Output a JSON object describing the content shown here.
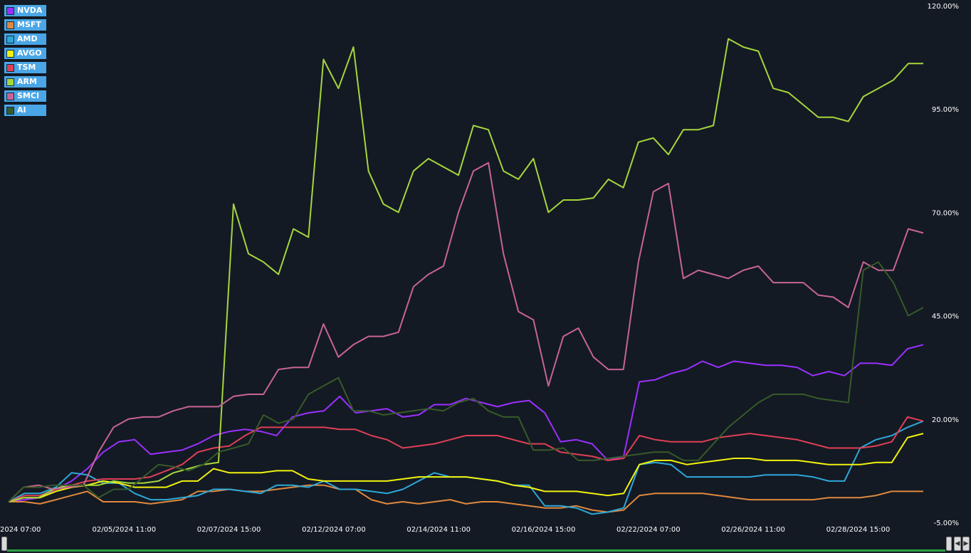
{
  "chart_data": {
    "type": "line",
    "y_unit": "%",
    "ylim": [
      -5,
      120
    ],
    "yticks": [
      "120.00%",
      "95.00%",
      "70.00%",
      "45.00%",
      "20.00%",
      "-5.00%"
    ],
    "xtick_labels": [
      "/2024 07:00",
      "02/05/2024 11:00",
      "02/07/2024 15:00",
      "02/12/2024 07:00",
      "02/14/2024 11:00",
      "02/16/2024 15:00",
      "02/22/2024 07:00",
      "02/26/2024 11:00",
      "02/28/2024 15:00"
    ],
    "grid": false,
    "legend_position": "top-left",
    "series": [
      {
        "name": "NVDA",
        "color": "#9b30ff",
        "values": [
          0,
          0.5,
          1,
          3,
          5,
          8,
          12,
          14.5,
          15,
          11.5,
          12,
          12.5,
          14,
          16,
          17,
          17.5,
          17,
          16,
          20.5,
          21.5,
          22,
          25.5,
          21.5,
          22,
          22.5,
          20.5,
          21,
          23.5,
          23.5,
          25,
          24,
          23,
          24,
          24.5,
          21.5,
          14.5,
          15,
          14,
          10,
          11,
          29,
          29.5,
          31,
          32,
          34,
          32.5,
          34,
          33.5,
          33,
          33,
          32.5,
          30.5,
          31.5,
          30.5,
          33.5,
          33.5,
          33,
          37,
          38
        ]
      },
      {
        "name": "MSFT",
        "color": "#e0883d",
        "values": [
          0,
          0,
          -0.5,
          0.5,
          1.5,
          2.5,
          0,
          0,
          0,
          -0.5,
          0,
          0.5,
          2.5,
          2.5,
          3,
          2.5,
          2.5,
          3,
          3.5,
          4,
          4,
          3,
          3,
          0.5,
          -0.5,
          0,
          -0.5,
          0,
          0.5,
          -0.5,
          0,
          0,
          -0.5,
          -1,
          -1.5,
          -1.5,
          -1,
          -2,
          -2.5,
          -2,
          1.5,
          2,
          2,
          2,
          2,
          1.5,
          1,
          0.5,
          0.5,
          0.5,
          0.5,
          0.5,
          1,
          1,
          1,
          1.5,
          2.5,
          2.5,
          2.5
        ]
      },
      {
        "name": "AMD",
        "color": "#2ea8d8",
        "values": [
          0,
          2,
          2,
          3.5,
          7,
          6.5,
          4.5,
          4.5,
          2,
          0.5,
          0.5,
          1,
          1.5,
          3,
          3,
          2.5,
          2,
          4,
          4,
          3.5,
          5,
          3,
          3,
          2.5,
          2,
          3,
          5,
          7,
          6,
          6,
          5.5,
          5,
          4,
          4,
          -1,
          -1,
          -1.5,
          -3,
          -2.5,
          -1.5,
          9,
          9.5,
          9,
          6,
          6,
          6,
          6,
          6,
          6.5,
          6.5,
          6.5,
          6,
          5,
          5,
          13,
          15,
          16,
          18,
          19.5
        ]
      },
      {
        "name": "AVGO",
        "color": "#f2f20d",
        "values": [
          0,
          1,
          1,
          2.5,
          3.5,
          4,
          5,
          4.5,
          3.5,
          3.5,
          3.5,
          5,
          5,
          8,
          7,
          7,
          7,
          7.5,
          7.5,
          5.5,
          5,
          5,
          5,
          5,
          5,
          5.5,
          6,
          6,
          6,
          6,
          5.5,
          5,
          4,
          3.5,
          2.5,
          2.5,
          2.5,
          2,
          1.5,
          2,
          9,
          10,
          10,
          9,
          9.5,
          10,
          10.5,
          10.5,
          10,
          10,
          10,
          9.5,
          9,
          9,
          9,
          9.5,
          9.5,
          15.5,
          16.5
        ]
      },
      {
        "name": "TSM",
        "color": "#e03f55",
        "values": [
          0,
          1.5,
          1.5,
          3,
          4,
          5,
          5.5,
          5.5,
          5.5,
          6,
          7.5,
          9,
          12,
          13,
          13.5,
          16,
          18,
          18,
          18,
          18,
          18,
          17.5,
          17.5,
          16,
          15,
          13,
          13.5,
          14,
          15,
          16,
          16,
          16,
          15,
          14,
          14,
          12,
          11.5,
          11,
          10,
          10.5,
          16,
          15,
          14.5,
          14.5,
          14.5,
          15.5,
          16,
          16.5,
          16,
          15.5,
          15,
          14,
          13,
          13,
          13,
          13.5,
          14.5,
          20.5,
          19.5
        ]
      },
      {
        "name": "ARM",
        "color": "#a6d63c",
        "values": [
          0,
          1,
          1,
          3,
          4,
          4,
          4,
          5,
          4.5,
          4.5,
          5,
          7,
          8,
          9,
          9.5,
          72,
          60,
          58,
          55,
          66,
          64,
          107,
          100,
          110,
          80,
          72,
          70,
          80,
          83,
          81,
          79,
          91,
          90,
          80,
          78,
          83,
          70,
          73,
          73,
          73.5,
          78,
          76,
          87,
          88,
          84,
          90,
          90,
          91,
          112,
          110,
          109,
          100,
          99,
          96,
          93,
          93,
          92,
          98,
          100,
          102,
          106,
          106
        ]
      },
      {
        "name": "SMCI",
        "color": "#c86494",
        "values": [
          0,
          3.5,
          4,
          3,
          3.5,
          4,
          12,
          18,
          20,
          20.5,
          20.5,
          22,
          23,
          23,
          23,
          25.5,
          26,
          26,
          32,
          32.5,
          32.5,
          43,
          35,
          38,
          40,
          40,
          41,
          52,
          55,
          57,
          70,
          80,
          82,
          60,
          46,
          44,
          28,
          40,
          42,
          35,
          32,
          32,
          58,
          75,
          77,
          54,
          56,
          55,
          54,
          56,
          57,
          53,
          53,
          53,
          50,
          49.5,
          47,
          58,
          56,
          56,
          66,
          65
        ]
      },
      {
        "name": "AI",
        "color": "#375a28",
        "values": [
          0,
          3.5,
          3.5,
          4,
          4,
          4,
          1,
          3,
          3,
          6,
          9,
          8.5,
          7.5,
          9,
          12,
          13,
          14,
          21,
          19,
          20,
          26,
          28,
          30,
          22,
          22,
          21,
          21.5,
          22,
          22.5,
          22,
          24,
          25,
          22,
          20.5,
          20.5,
          12.5,
          12.5,
          13,
          10,
          10,
          10.5,
          11,
          11.5,
          12,
          12,
          10,
          10,
          14,
          18,
          21,
          24,
          26,
          26,
          26,
          25,
          24.5,
          24,
          56,
          58,
          53,
          45,
          47
        ]
      }
    ]
  }
}
